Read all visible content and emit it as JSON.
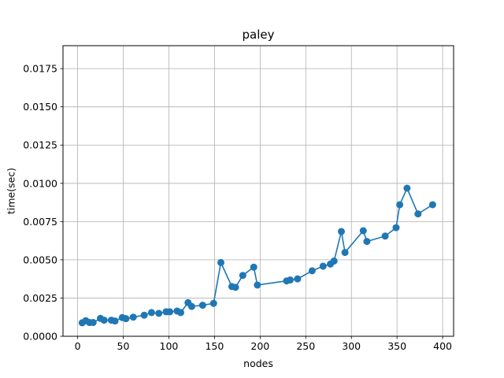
{
  "chart_data": {
    "type": "line",
    "title": "paley",
    "xlabel": "nodes",
    "ylabel": "time(sec)",
    "xlim": [
      -16,
      412
    ],
    "ylim": [
      0,
      0.019
    ],
    "xticks": [
      0,
      50,
      100,
      150,
      200,
      250,
      300,
      350,
      400
    ],
    "xtick_labels": [
      "0",
      "50",
      "100",
      "150",
      "200",
      "250",
      "300",
      "350",
      "400"
    ],
    "yticks": [
      0,
      0.0025,
      0.005,
      0.0075,
      0.01,
      0.0125,
      0.015,
      0.0175
    ],
    "ytick_labels": [
      "0.0000",
      "0.0025",
      "0.0050",
      "0.0075",
      "0.0100",
      "0.0125",
      "0.0150",
      "0.0175"
    ],
    "grid": true,
    "color": "#1f77b4",
    "series": [
      {
        "x": [
          5,
          9,
          13,
          17,
          25,
          29,
          37,
          41,
          49,
          53,
          61,
          73,
          81,
          89,
          97,
          101,
          109,
          113,
          121,
          125,
          137,
          149,
          157,
          169,
          173,
          181,
          193,
          197,
          229,
          233,
          241,
          257,
          269,
          277,
          281,
          289,
          293,
          313,
          317,
          337,
          349,
          353,
          361,
          373,
          389
        ],
        "y": [
          0.00088,
          0.00102,
          0.0009,
          0.0009,
          0.00117,
          0.00105,
          0.00105,
          0.001,
          0.00122,
          0.00115,
          0.00125,
          0.00138,
          0.00155,
          0.0015,
          0.0016,
          0.0016,
          0.00165,
          0.00155,
          0.0022,
          0.00195,
          0.00203,
          0.00215,
          0.00482,
          0.00325,
          0.0032,
          0.00398,
          0.00452,
          0.00335,
          0.00362,
          0.00368,
          0.00375,
          0.00428,
          0.00458,
          0.00472,
          0.00492,
          0.00685,
          0.00548,
          0.0069,
          0.0062,
          0.00655,
          0.0071,
          0.0086,
          0.00968,
          0.008,
          0.0086
        ]
      }
    ]
  }
}
